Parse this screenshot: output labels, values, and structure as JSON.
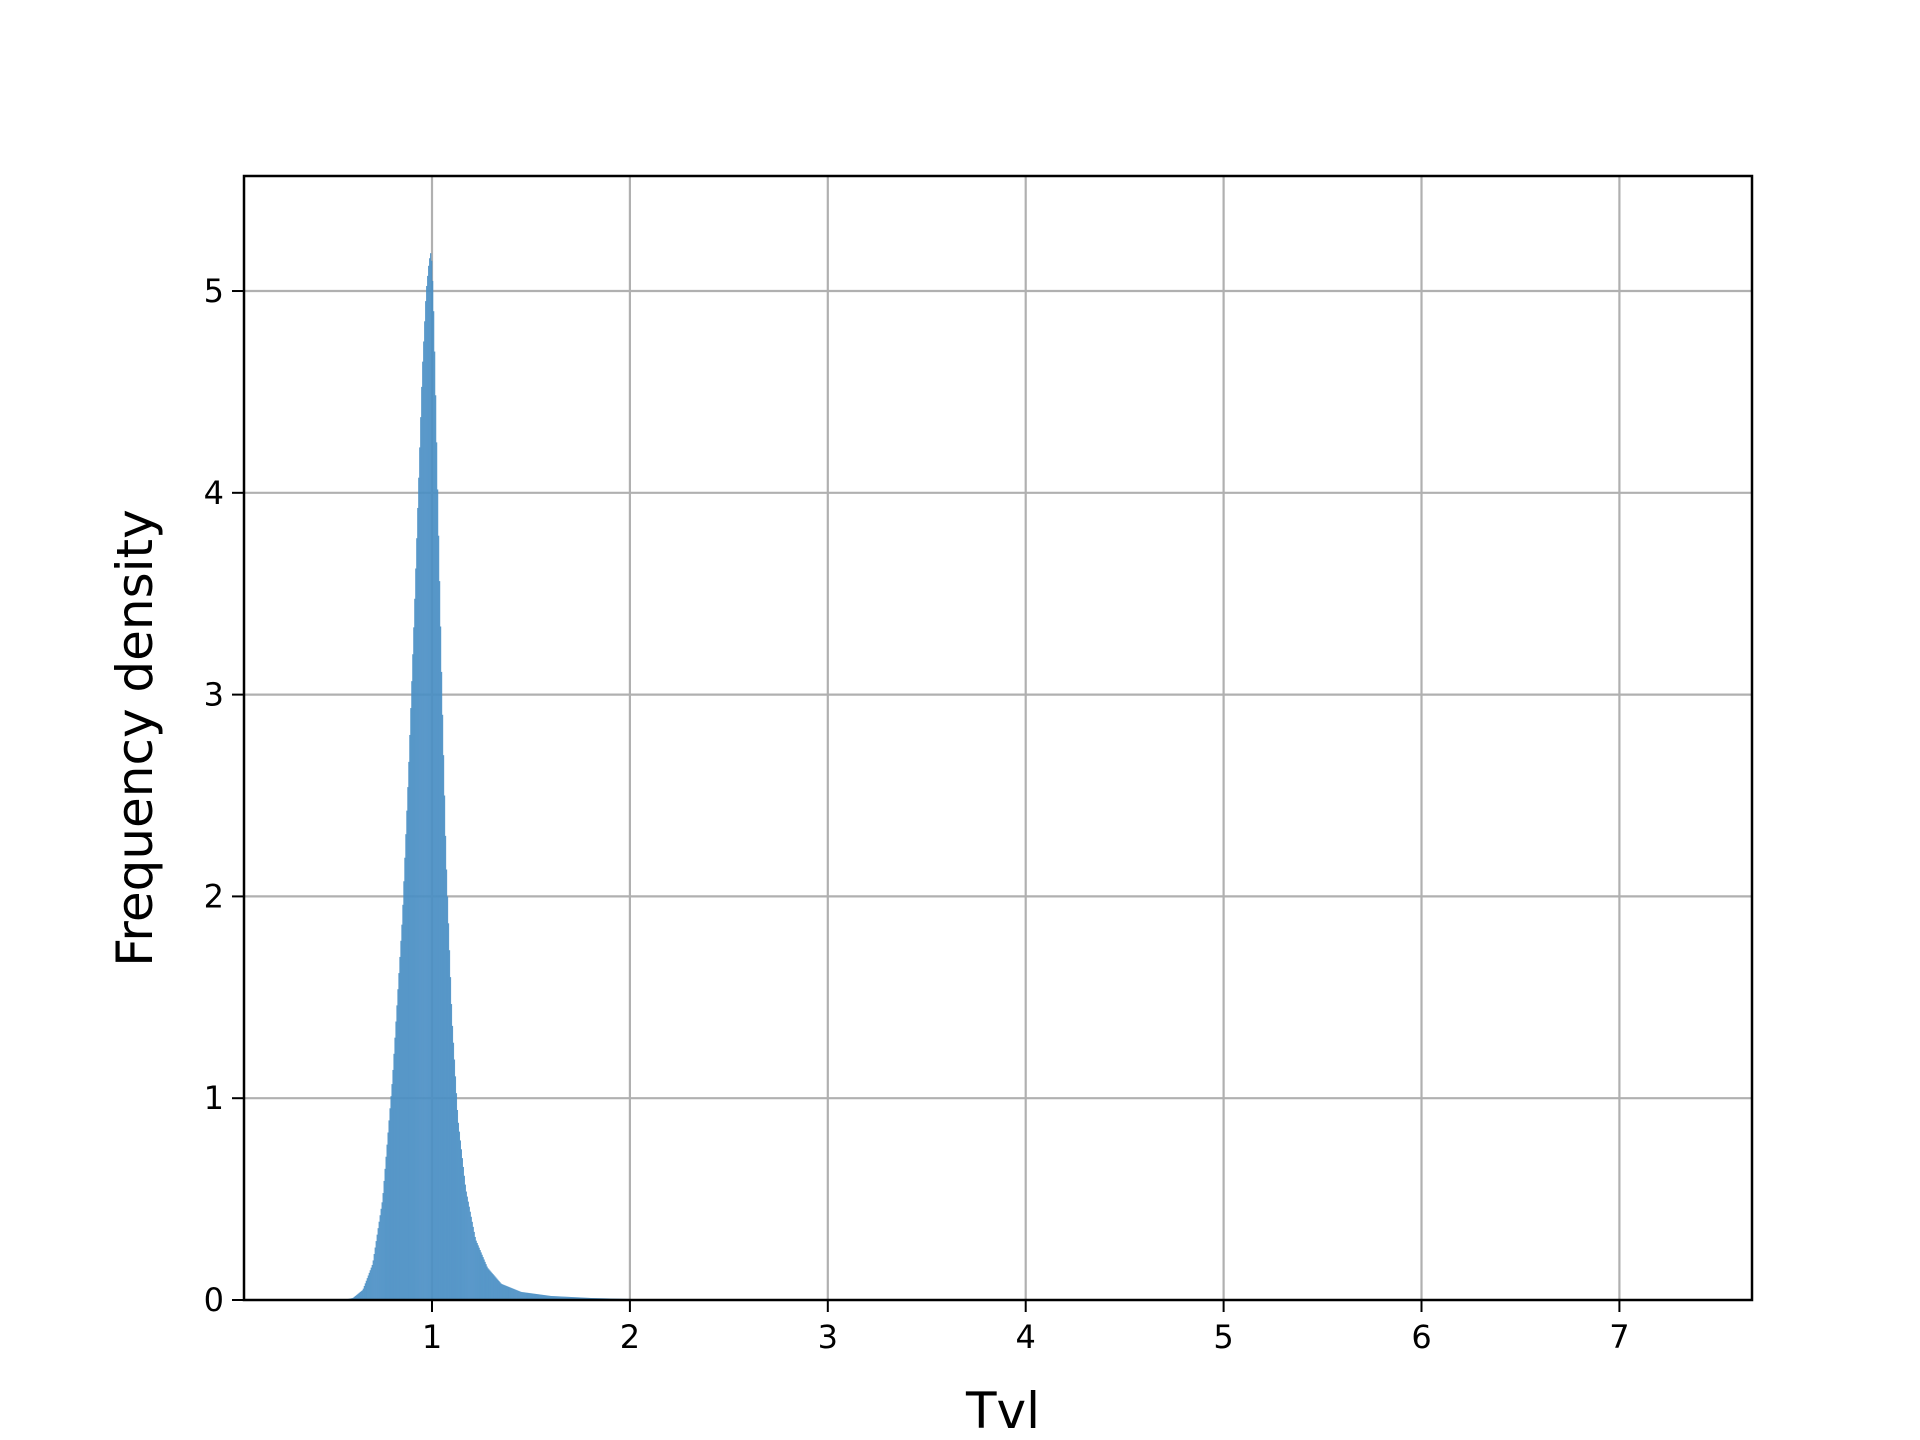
{
  "chart_data": {
    "type": "bar",
    "title": "",
    "xlabel": "Tvl",
    "ylabel": "Frequency density",
    "xlim": [
      0.05,
      7.67
    ],
    "ylim": [
      0,
      5.57
    ],
    "xticks": [
      "1",
      "2",
      "3",
      "4",
      "5",
      "6",
      "7"
    ],
    "yticks": [
      "0",
      "1",
      "2",
      "3",
      "4",
      "5"
    ],
    "grid": true,
    "legend": "none",
    "bar_color": "#4a8fc4",
    "grid_color": "#b0b0b0",
    "series": [
      {
        "x": [
          0.55,
          0.6,
          0.65,
          0.7,
          0.75,
          0.8,
          0.85,
          0.88,
          0.91,
          0.93,
          0.95,
          0.97,
          0.985,
          0.995,
          1.005,
          1.015,
          1.03,
          1.05,
          1.07,
          1.1,
          1.13,
          1.17,
          1.22,
          1.28,
          1.35,
          1.45,
          1.6,
          1.8,
          2.0,
          2.3
        ],
        "y": [
          0.0,
          0.01,
          0.05,
          0.18,
          0.5,
          1.1,
          1.9,
          2.6,
          3.4,
          4.0,
          4.6,
          5.0,
          5.15,
          5.2,
          5.0,
          4.6,
          3.9,
          3.0,
          2.2,
          1.4,
          0.9,
          0.55,
          0.3,
          0.16,
          0.08,
          0.04,
          0.02,
          0.01,
          0.005,
          0.0
        ]
      }
    ]
  }
}
